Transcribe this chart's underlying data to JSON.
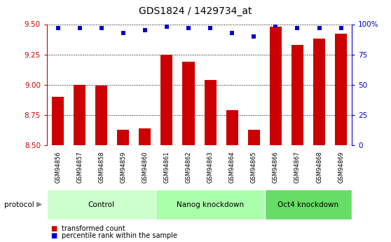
{
  "title": "GDS1824 / 1429734_at",
  "categories": [
    "GSM94856",
    "GSM94857",
    "GSM94858",
    "GSM94859",
    "GSM94860",
    "GSM94861",
    "GSM94862",
    "GSM94863",
    "GSM94864",
    "GSM94865",
    "GSM94866",
    "GSM94867",
    "GSM94868",
    "GSM94869"
  ],
  "bar_values": [
    8.9,
    9.0,
    8.99,
    8.63,
    8.64,
    9.25,
    9.19,
    9.04,
    8.79,
    8.63,
    9.48,
    9.33,
    9.38,
    9.42
  ],
  "dot_values": [
    97,
    97,
    97,
    93,
    95,
    98,
    97,
    97,
    93,
    90,
    99,
    97,
    97,
    97
  ],
  "bar_color": "#cc0000",
  "dot_color": "#0000cc",
  "ylim_left": [
    8.5,
    9.5
  ],
  "ylim_right": [
    0,
    100
  ],
  "yticks_left": [
    8.5,
    8.75,
    9.0,
    9.25,
    9.5
  ],
  "yticks_right": [
    0,
    25,
    50,
    75,
    100
  ],
  "groups": [
    {
      "label": "Control",
      "start": 0,
      "end": 5,
      "color": "#ccffcc"
    },
    {
      "label": "Nanog knockdown",
      "start": 5,
      "end": 10,
      "color": "#aaffaa"
    },
    {
      "label": "Oct4 knockdown",
      "start": 10,
      "end": 14,
      "color": "#66dd66"
    }
  ],
  "protocol_label": "protocol",
  "legend_items": [
    {
      "label": "transformed count",
      "color": "#cc0000"
    },
    {
      "label": "percentile rank within the sample",
      "color": "#0000cc"
    }
  ],
  "bg_color": "#ffffff",
  "plot_bg_color": "#ffffff",
  "tick_color_left": "#cc0000",
  "tick_color_right": "#0000cc",
  "grid_color": "#000000",
  "bar_width": 0.55,
  "xlabels_bg": "#d8d8d8",
  "dot_size": 25
}
